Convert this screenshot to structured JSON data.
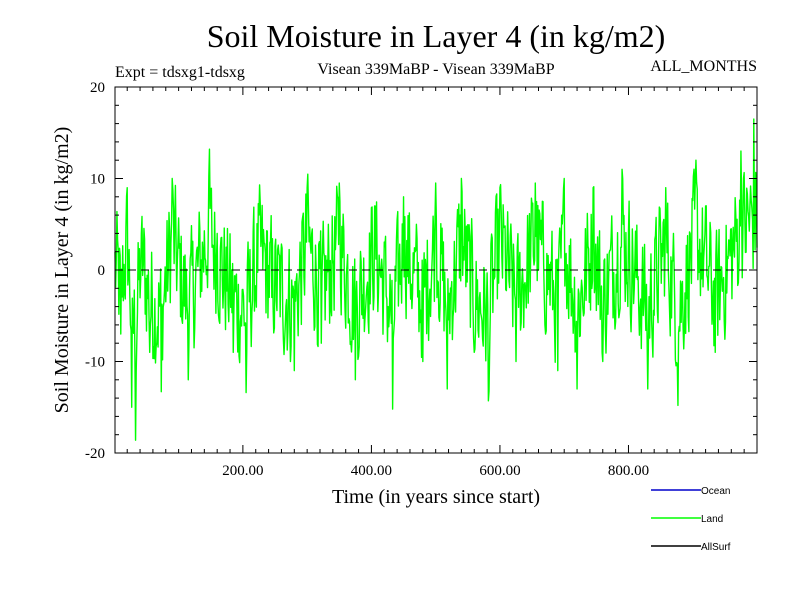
{
  "chart_data": {
    "type": "line",
    "title": "Soil Moisture in Layer 4 (in kg/m2)",
    "subtitle_left": "Expt = tdsxg1-tdsxg",
    "subtitle_center": "Visean 339MaBP - Visean 339MaBP",
    "subtitle_right": "ALL_MONTHS",
    "xlabel": "Time (in years since start)",
    "ylabel": "Soil Moisture in Layer 4 (in kg/m2)",
    "xlim": [
      1,
      1000
    ],
    "ylim": [
      -20,
      20
    ],
    "x_ticks": [
      200,
      400,
      600,
      800
    ],
    "x_tick_labels": [
      "200.00",
      "400.00",
      "600.00",
      "800.00"
    ],
    "y_ticks": [
      -20,
      -10,
      0,
      10,
      20
    ],
    "y_tick_labels": [
      "-20",
      "-10",
      "0",
      "10",
      "20"
    ],
    "zero_line": "dashed",
    "series": [
      {
        "name": "Land",
        "color": "#00ff00",
        "description": "annual soil moisture anomaly, ~1000 years, range approx -18.6 to 16.5",
        "summary": {
          "min": -18.6,
          "max": 16.5,
          "mean": 0.0
        },
        "anchors": [
          [
            1,
            2
          ],
          [
            10,
            -7
          ],
          [
            20,
            9
          ],
          [
            27,
            -15
          ],
          [
            33,
            -18.6
          ],
          [
            42,
            4
          ],
          [
            55,
            -9
          ],
          [
            73,
            -13.3
          ],
          [
            90,
            10
          ],
          [
            115,
            -12
          ],
          [
            148,
            13.2
          ],
          [
            160,
            4
          ],
          [
            185,
            -9
          ],
          [
            205,
            -13.4
          ],
          [
            225,
            6
          ],
          [
            245,
            -3
          ],
          [
            280,
            -11
          ],
          [
            300,
            9
          ],
          [
            322,
            -8
          ],
          [
            350,
            9.5
          ],
          [
            375,
            -12
          ],
          [
            405,
            7
          ],
          [
            433,
            -15.2
          ],
          [
            450,
            8
          ],
          [
            480,
            -10
          ],
          [
            500,
            9.5
          ],
          [
            518,
            -13
          ],
          [
            540,
            10
          ],
          [
            560,
            -9
          ],
          [
            582,
            -14.3
          ],
          [
            600,
            9
          ],
          [
            625,
            -10
          ],
          [
            655,
            9.5
          ],
          [
            690,
            -11
          ],
          [
            700,
            10
          ],
          [
            720,
            -13
          ],
          [
            745,
            9
          ],
          [
            760,
            -10
          ],
          [
            790,
            11
          ],
          [
            830,
            -13
          ],
          [
            858,
            9
          ],
          [
            877,
            -14.8
          ],
          [
            905,
            12
          ],
          [
            935,
            -9
          ],
          [
            975,
            13
          ],
          [
            995,
            16.5
          ]
        ]
      },
      {
        "name": "Ocean",
        "color": "#0000cc",
        "values": []
      },
      {
        "name": "AllSurf",
        "color": "#000000",
        "values": []
      }
    ],
    "legend": {
      "placement": "bottom-right",
      "entries": [
        {
          "label": "Ocean",
          "color": "#0000cc"
        },
        {
          "label": "Land",
          "color": "#00ff00"
        },
        {
          "label": "AllSurf",
          "color": "#000000"
        }
      ]
    }
  }
}
